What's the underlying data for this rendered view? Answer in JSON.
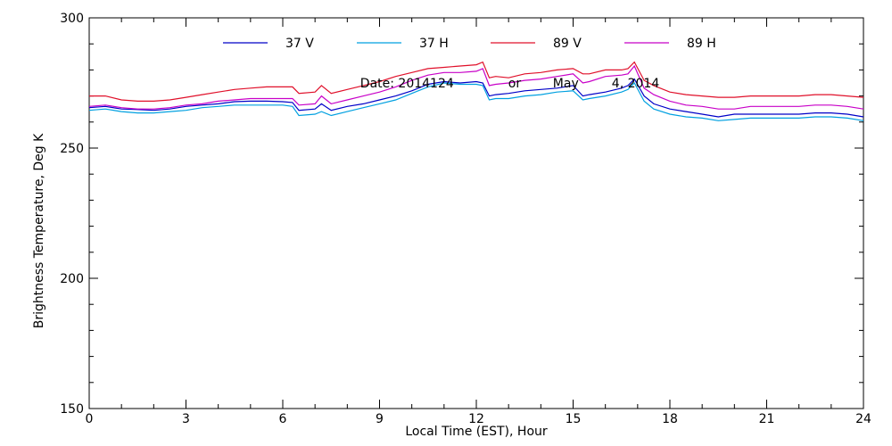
{
  "chart_data": {
    "type": "line",
    "xlabel": "Local Time (EST), Hour",
    "ylabel": "Brightness Temperature, Deg K",
    "xlim": [
      0,
      24
    ],
    "ylim": [
      150,
      300
    ],
    "xticks": [
      0,
      3,
      6,
      9,
      12,
      15,
      18,
      21,
      24
    ],
    "yticks": [
      150,
      200,
      250,
      300
    ],
    "x_minor_step": 1,
    "y_minor_step": 10,
    "grid": false,
    "legend_position": "top",
    "annotation": {
      "date_text": "Date: 2014124",
      "or_text": "or",
      "month_text": "May",
      "day_year_text": "4, 2014",
      "x": 8.4,
      "y": 275
    },
    "x": [
      0,
      0.5,
      1,
      1.5,
      2,
      2.5,
      3,
      3.5,
      4,
      4.5,
      5,
      5.5,
      6,
      6.3,
      6.5,
      7,
      7.2,
      7.5,
      8,
      8.5,
      9,
      9.5,
      10,
      10.5,
      11,
      11.5,
      12,
      12.2,
      12.4,
      12.6,
      13,
      13.5,
      14,
      14.5,
      15,
      15.3,
      15.5,
      16,
      16.5,
      16.7,
      16.9,
      17.2,
      17.5,
      18,
      18.5,
      19,
      19.5,
      20,
      20.5,
      21,
      21.5,
      22,
      22.5,
      23,
      23.5,
      24
    ],
    "series": [
      {
        "name": "37 V",
        "color": "#0000c8",
        "values": [
          265.5,
          266.0,
          265.0,
          264.8,
          264.5,
          265.0,
          266.0,
          266.5,
          267.0,
          267.8,
          268.0,
          268.0,
          267.8,
          267.5,
          264.5,
          265.0,
          267.0,
          264.5,
          266.0,
          267.0,
          268.5,
          270.0,
          272.0,
          274.5,
          275.5,
          275.0,
          275.5,
          275.0,
          270.0,
          270.5,
          271.0,
          272.0,
          272.5,
          273.0,
          274.0,
          270.0,
          270.5,
          271.5,
          273.0,
          274.0,
          276.5,
          270.0,
          267.0,
          265.0,
          264.0,
          263.0,
          262.0,
          263.0,
          263.0,
          263.0,
          263.0,
          263.0,
          263.5,
          263.5,
          263.0,
          262.0
        ]
      },
      {
        "name": "37 H",
        "color": "#00a0e0",
        "values": [
          264.5,
          265.0,
          264.0,
          263.5,
          263.5,
          264.0,
          264.5,
          265.5,
          266.0,
          266.5,
          266.5,
          266.5,
          266.5,
          266.0,
          262.5,
          263.0,
          264.0,
          262.5,
          264.0,
          265.5,
          267.0,
          268.5,
          271.0,
          273.5,
          275.0,
          274.5,
          274.5,
          274.0,
          268.5,
          269.0,
          269.0,
          270.0,
          270.5,
          271.5,
          272.0,
          268.5,
          269.0,
          270.0,
          271.5,
          272.5,
          275.0,
          268.0,
          265.0,
          263.0,
          262.0,
          261.5,
          260.5,
          261.0,
          261.5,
          261.5,
          261.5,
          261.5,
          262.0,
          262.0,
          261.5,
          260.5
        ]
      },
      {
        "name": "89 V",
        "color": "#e0102a",
        "values": [
          270.0,
          270.0,
          268.5,
          268.0,
          268.0,
          268.5,
          269.5,
          270.5,
          271.5,
          272.5,
          273.0,
          273.5,
          273.5,
          273.5,
          271.0,
          271.5,
          274.0,
          271.0,
          272.5,
          274.0,
          275.5,
          277.5,
          279.0,
          280.5,
          281.0,
          281.5,
          282.0,
          283.0,
          277.0,
          277.5,
          277.0,
          278.5,
          279.0,
          280.0,
          280.5,
          278.5,
          278.5,
          280.0,
          280.0,
          280.5,
          283.0,
          276.0,
          274.0,
          271.5,
          270.5,
          270.0,
          269.5,
          269.5,
          270.0,
          270.0,
          270.0,
          270.0,
          270.5,
          270.5,
          270.0,
          269.5
        ]
      },
      {
        "name": "89 H",
        "color": "#c800c8",
        "values": [
          266.0,
          266.5,
          265.5,
          265.0,
          265.0,
          265.5,
          266.5,
          267.0,
          268.0,
          268.5,
          269.0,
          269.0,
          269.0,
          269.0,
          266.5,
          267.0,
          270.0,
          267.0,
          268.5,
          270.0,
          271.5,
          273.5,
          276.0,
          278.0,
          279.0,
          279.0,
          279.5,
          280.5,
          274.0,
          274.5,
          275.0,
          276.0,
          276.5,
          277.5,
          278.5,
          275.0,
          275.5,
          277.5,
          278.0,
          278.5,
          281.5,
          273.0,
          270.5,
          268.0,
          266.5,
          266.0,
          265.0,
          265.0,
          266.0,
          266.0,
          266.0,
          266.0,
          266.5,
          266.5,
          266.0,
          265.0
        ]
      }
    ]
  }
}
